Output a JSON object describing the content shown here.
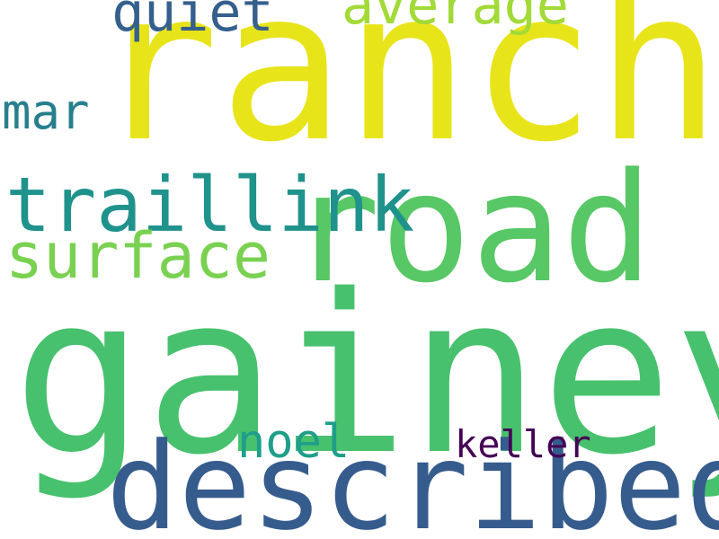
{
  "background": "#ffffff",
  "words": [
    {
      "id": "gainey",
      "text": "gainey",
      "color": "#48c16e"
    },
    {
      "id": "ranch",
      "text": "ranch",
      "color": "#e8e41a"
    },
    {
      "id": "road",
      "text": "road",
      "color": "#58c765"
    },
    {
      "id": "described",
      "text": "described",
      "color": "#365c8d"
    },
    {
      "id": "traillink",
      "text": "traillink",
      "color": "#20928c"
    },
    {
      "id": "surface",
      "text": "surface",
      "color": "#7ad151"
    },
    {
      "id": "average",
      "text": "average",
      "color": "#a2da37"
    },
    {
      "id": "quiet",
      "text": "quiet",
      "color": "#355f8d"
    },
    {
      "id": "mar",
      "text": "mar",
      "color": "#277f8e"
    },
    {
      "id": "noel",
      "text": "noel",
      "color": "#1f9e89"
    },
    {
      "id": "keller",
      "text": "keller",
      "color": "#440154"
    }
  ]
}
